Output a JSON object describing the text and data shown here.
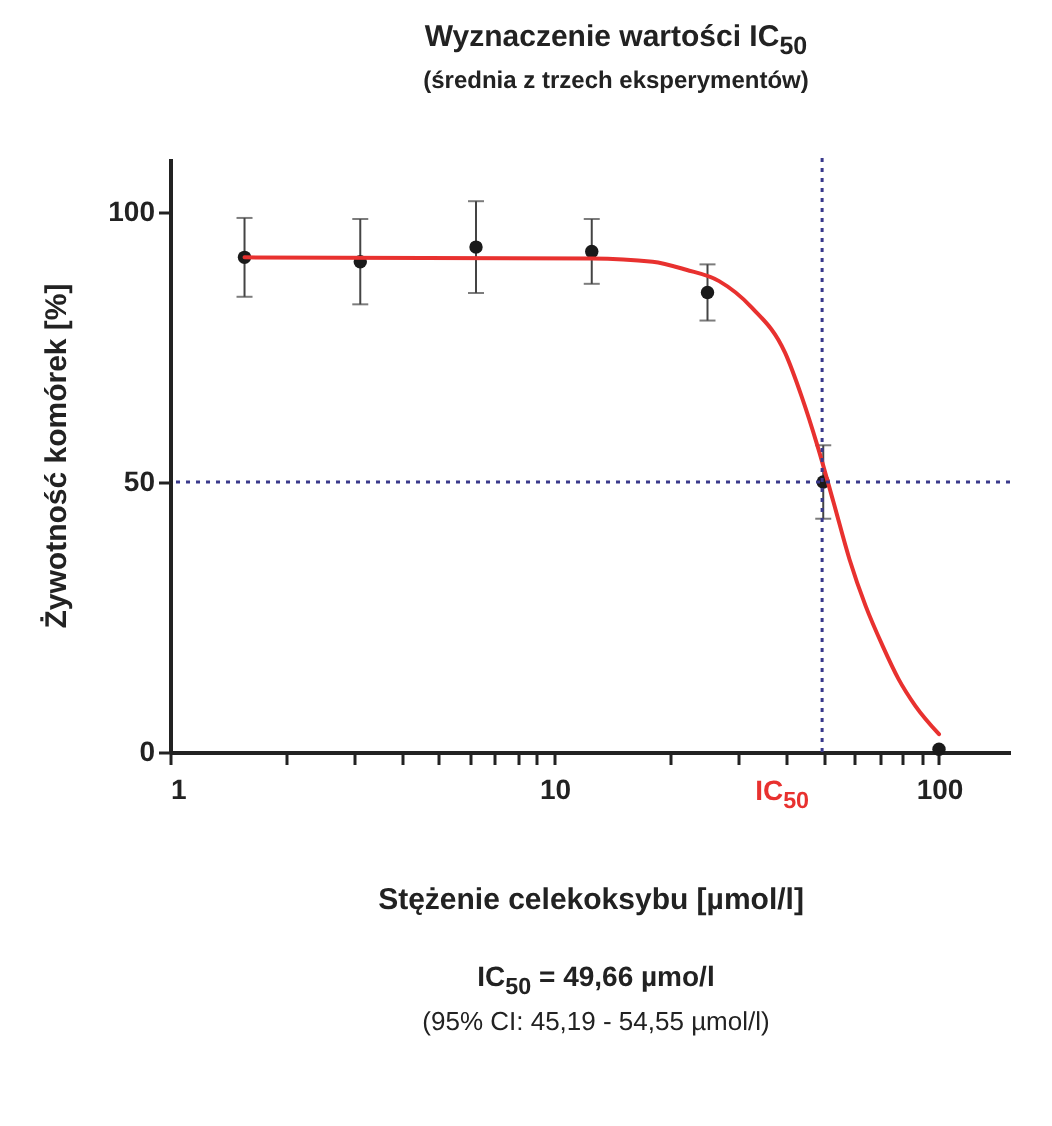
{
  "chart_data": {
    "type": "scatter",
    "title": "Wyznaczenie wartości IC$_{50}$",
    "subtitle": "(średnia z trzech eksperymentów)",
    "xlabel": "Stężenie celekoksybu [µmol/l]",
    "ylabel": "Żywotność komórek [%]",
    "x": [
      1.5625,
      3.125,
      6.25,
      12.5,
      25,
      50,
      100
    ],
    "series": [
      {
        "color": "#1a1a1a",
        "marker": "circle",
        "values": [
          91.6,
          90.8,
          93.5,
          92.7,
          85.1,
          50.0,
          0.5
        ],
        "errors": [
          7.3,
          7.9,
          8.5,
          6.0,
          5.2,
          6.8,
          null
        ]
      },
      {
        "type": "line",
        "color": "#e8312f",
        "line_style": "solid",
        "marker": "none",
        "x": [
          1.5625,
          12.5,
          18.0,
          22.0,
          26.8,
          32.6,
          39.8,
          43.9,
          48.3,
          53.2,
          58.5,
          64.4,
          71.3,
          78.5,
          86.7,
          100
        ],
        "values": [
          91.6,
          91.4,
          90.8,
          89.3,
          87.2,
          82.3,
          73.9,
          65.9,
          56.7,
          46.2,
          35.7,
          27.1,
          19.7,
          13.5,
          8.6,
          3.3
        ]
      }
    ],
    "log": "x",
    "xlim": [
      1,
      153
    ],
    "ylim": [
      0,
      110
    ],
    "xticks": [
      1,
      {
        "value": 2,
        "label": null
      },
      {
        "value": 3,
        "label": null
      },
      {
        "value": 4,
        "label": null
      },
      {
        "value": 5,
        "label": null
      },
      {
        "value": 6,
        "label": null
      },
      {
        "value": 7,
        "label": null
      },
      {
        "value": 8,
        "label": null
      },
      {
        "value": 9,
        "label": null
      },
      10,
      {
        "value": 20,
        "label": null
      },
      {
        "value": 30,
        "label": null
      },
      {
        "value": 40,
        "label": null
      },
      {
        "value": 50,
        "label": null
      },
      {
        "value": 60,
        "label": null
      },
      {
        "value": 70,
        "label": null
      },
      {
        "value": 80,
        "label": null
      },
      {
        "value": 90,
        "label": null
      },
      100
    ],
    "yticks": [
      0,
      50,
      100
    ],
    "grid": false,
    "ref_lines": [
      {
        "axis": "x",
        "value": 49.66,
        "color": "#3a3a8c",
        "line_style": "dotted"
      },
      {
        "axis": "y",
        "value": 50,
        "color": "#3a3a8c",
        "line_style": "dotted"
      }
    ],
    "annotations": [
      {
        "text": "IC$_{50}$",
        "x": 49.66,
        "y": 0
      },
      "IC$_{50}$ = 49,66 µmo/l",
      "(95% CI: 45,19 - 54,55 µmol/l)"
    ]
  }
}
